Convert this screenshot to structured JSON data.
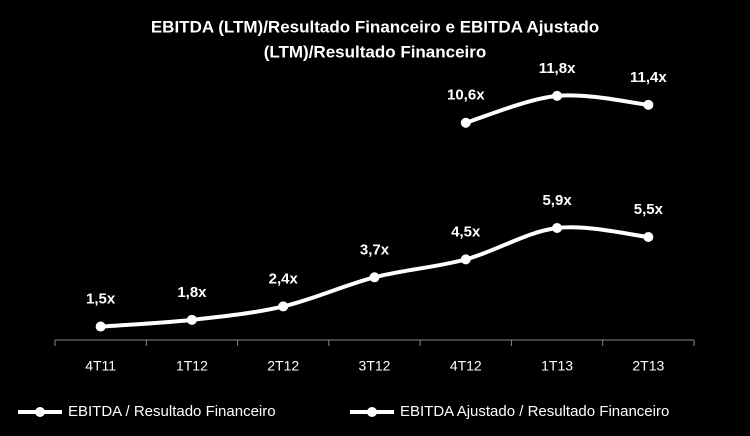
{
  "chart_data": {
    "type": "line",
    "title": [
      "EBITDA (LTM)/Resultado Financeiro e  EBITDA Ajustado",
      "(LTM)/Resultado Financeiro"
    ],
    "categories": [
      "4T11",
      "1T12",
      "2T12",
      "3T12",
      "4T12",
      "1T13",
      "2T13"
    ],
    "ylim": [
      0.9,
      13
    ],
    "smooth": true,
    "series": [
      {
        "name": "EBITDA / Resultado Financeiro",
        "color": "#ffffff",
        "values": [
          1.5,
          1.8,
          2.4,
          3.7,
          4.5,
          5.9,
          5.5
        ],
        "value_labels": [
          "1,5x",
          "1,8x",
          "2,4x",
          "3,7x",
          "4,5x",
          "5,9x",
          "5,5x"
        ]
      },
      {
        "name": "EBITDA Ajustado / Resultado Financeiro",
        "color": "#ffffff",
        "values": [
          null,
          null,
          null,
          null,
          10.6,
          11.8,
          11.4
        ],
        "value_labels": [
          null,
          null,
          null,
          null,
          "10,6x",
          "11,8x",
          "11,4x"
        ]
      }
    ]
  }
}
